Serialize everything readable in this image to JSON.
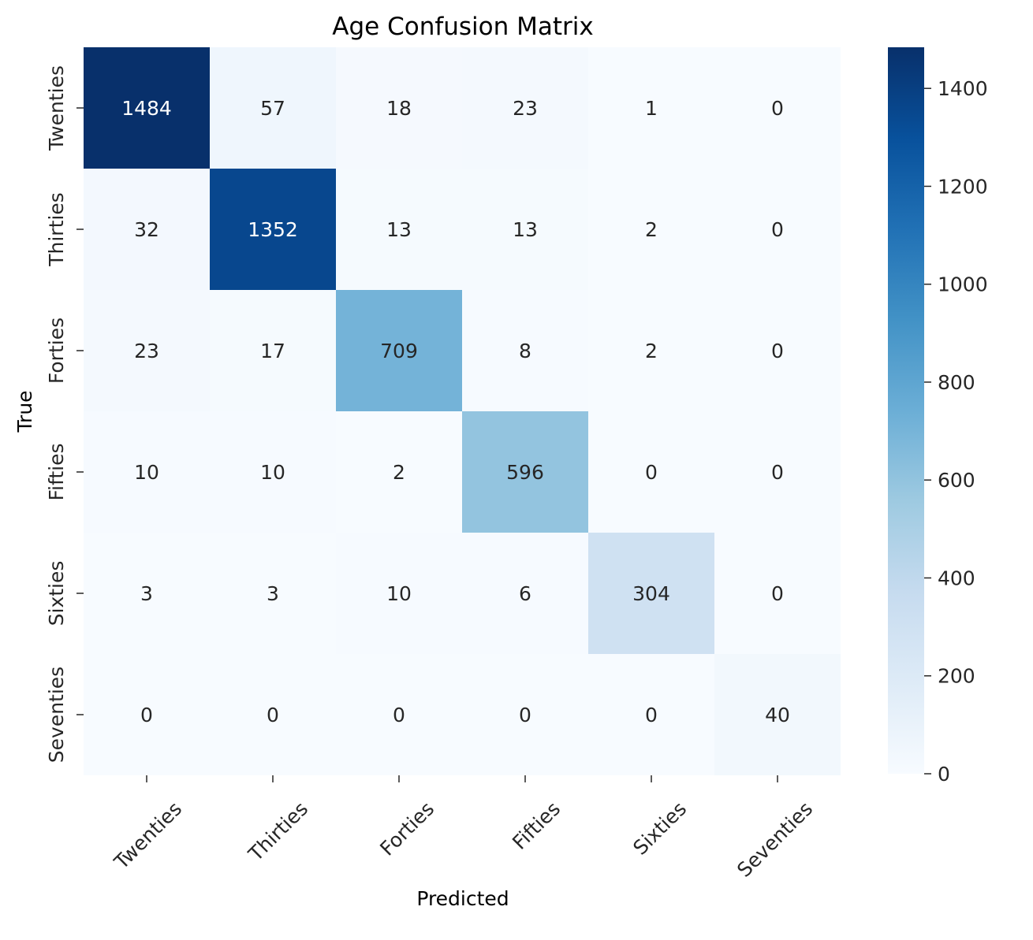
{
  "chart_data": {
    "type": "heatmap",
    "title": "Age Confusion Matrix",
    "xlabel": "Predicted",
    "ylabel": "True",
    "x_categories": [
      "Twenties",
      "Thirties",
      "Forties",
      "Fifties",
      "Sixties",
      "Seventies"
    ],
    "y_categories": [
      "Twenties",
      "Thirties",
      "Forties",
      "Fifties",
      "Sixties",
      "Seventies"
    ],
    "values": [
      [
        1484,
        57,
        18,
        23,
        1,
        0
      ],
      [
        32,
        1352,
        13,
        13,
        2,
        0
      ],
      [
        23,
        17,
        709,
        8,
        2,
        0
      ],
      [
        10,
        10,
        2,
        596,
        0,
        0
      ],
      [
        3,
        3,
        10,
        6,
        304,
        0
      ],
      [
        0,
        0,
        0,
        0,
        0,
        40
      ]
    ],
    "colorbar": {
      "min": 0,
      "max": 1484,
      "ticks": [
        0,
        200,
        400,
        600,
        800,
        1000,
        1200,
        1400
      ]
    },
    "colormap": "Blues",
    "grid": false,
    "legend": "colorbar-right"
  }
}
